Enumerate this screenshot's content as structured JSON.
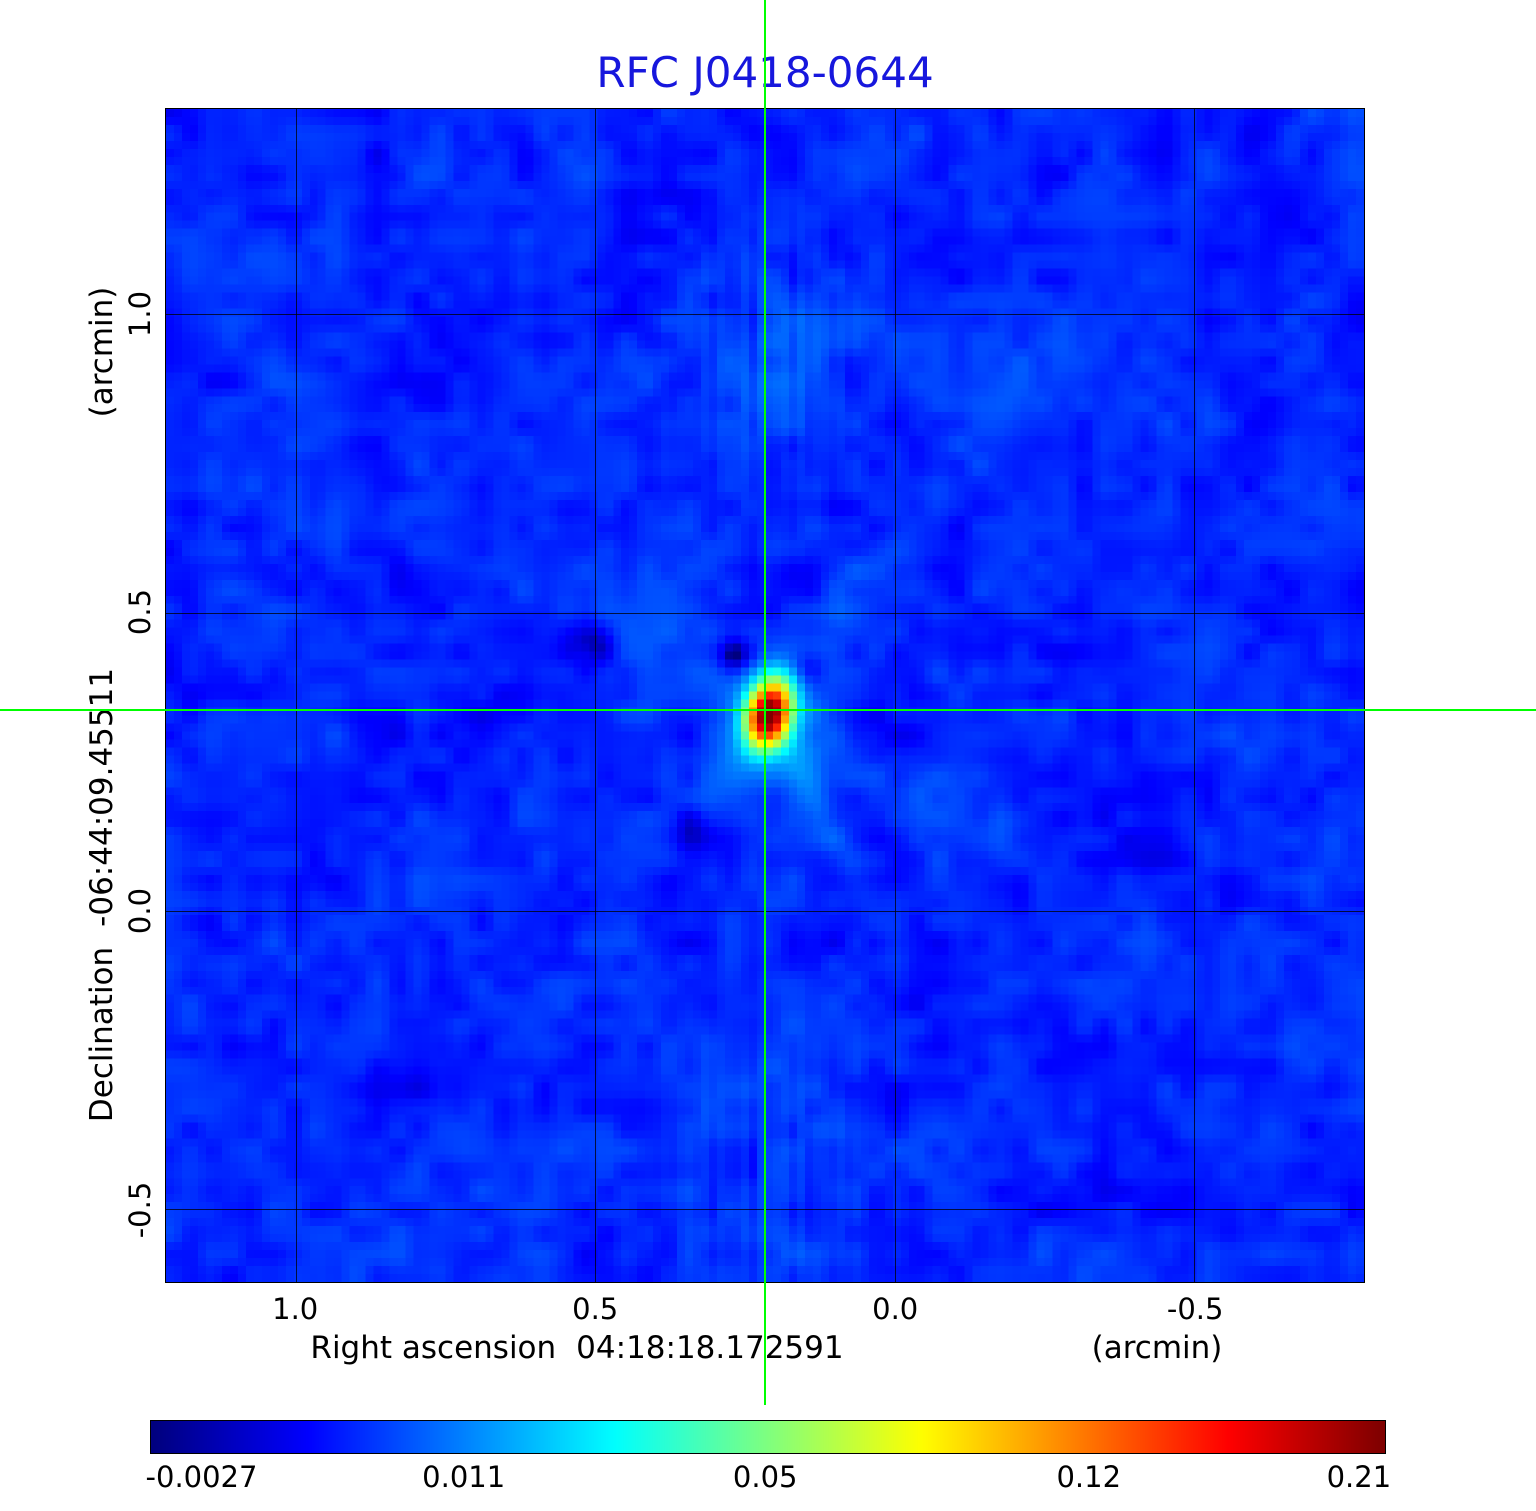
{
  "title": "RFC J0418-0644",
  "colors": {
    "title": "#1717dd",
    "crosshair": "#00ff00",
    "grid": "#000000",
    "background": "#ffffff"
  },
  "x_axis": {
    "label": "Right ascension",
    "coordinate": "04:18:18.172591",
    "unit": "(arcmin)",
    "tick_labels": [
      "1.0",
      "0.5",
      "0.0",
      "-0.5"
    ]
  },
  "y_axis": {
    "label": "Declination",
    "coordinate": "-06:44:09.45511",
    "unit": "(arcmin)",
    "tick_labels": [
      "1.0",
      "0.5",
      "0.0",
      "-0.5"
    ]
  },
  "colorbar": {
    "tick_labels": [
      "-0.0027",
      "0.011",
      "0.05",
      "0.12",
      "0.21"
    ]
  },
  "chart_data": {
    "type": "heatmap",
    "title": "RFC J0418-0644",
    "xlabel": "Right ascension 04:18:18.172591 (arcmin)",
    "ylabel": "Declination -06:44:09.45511 (arcmin)",
    "xlim": [
      1.217,
      -0.783
    ],
    "ylim": [
      -0.622,
      1.344
    ],
    "x_ticks": [
      1.0,
      0.5,
      0.0,
      -0.5
    ],
    "y_ticks": [
      1.0,
      0.5,
      0.0,
      -0.5
    ],
    "grid": true,
    "colormap": "jet",
    "color_scale": {
      "stretch": "sqrt",
      "vmin": -0.0027,
      "vmax": 0.21,
      "colorbar_ticks": [
        -0.0027,
        0.011,
        0.05,
        0.12,
        0.21
      ]
    },
    "source": {
      "ra_offset_arcmin": 0.217,
      "dec_offset_arcmin": 0.337,
      "peak": 0.21
    },
    "crosshair": {
      "x_arcmin": 0.217,
      "y_arcmin": 0.337
    },
    "background_level": 0.0028
  }
}
